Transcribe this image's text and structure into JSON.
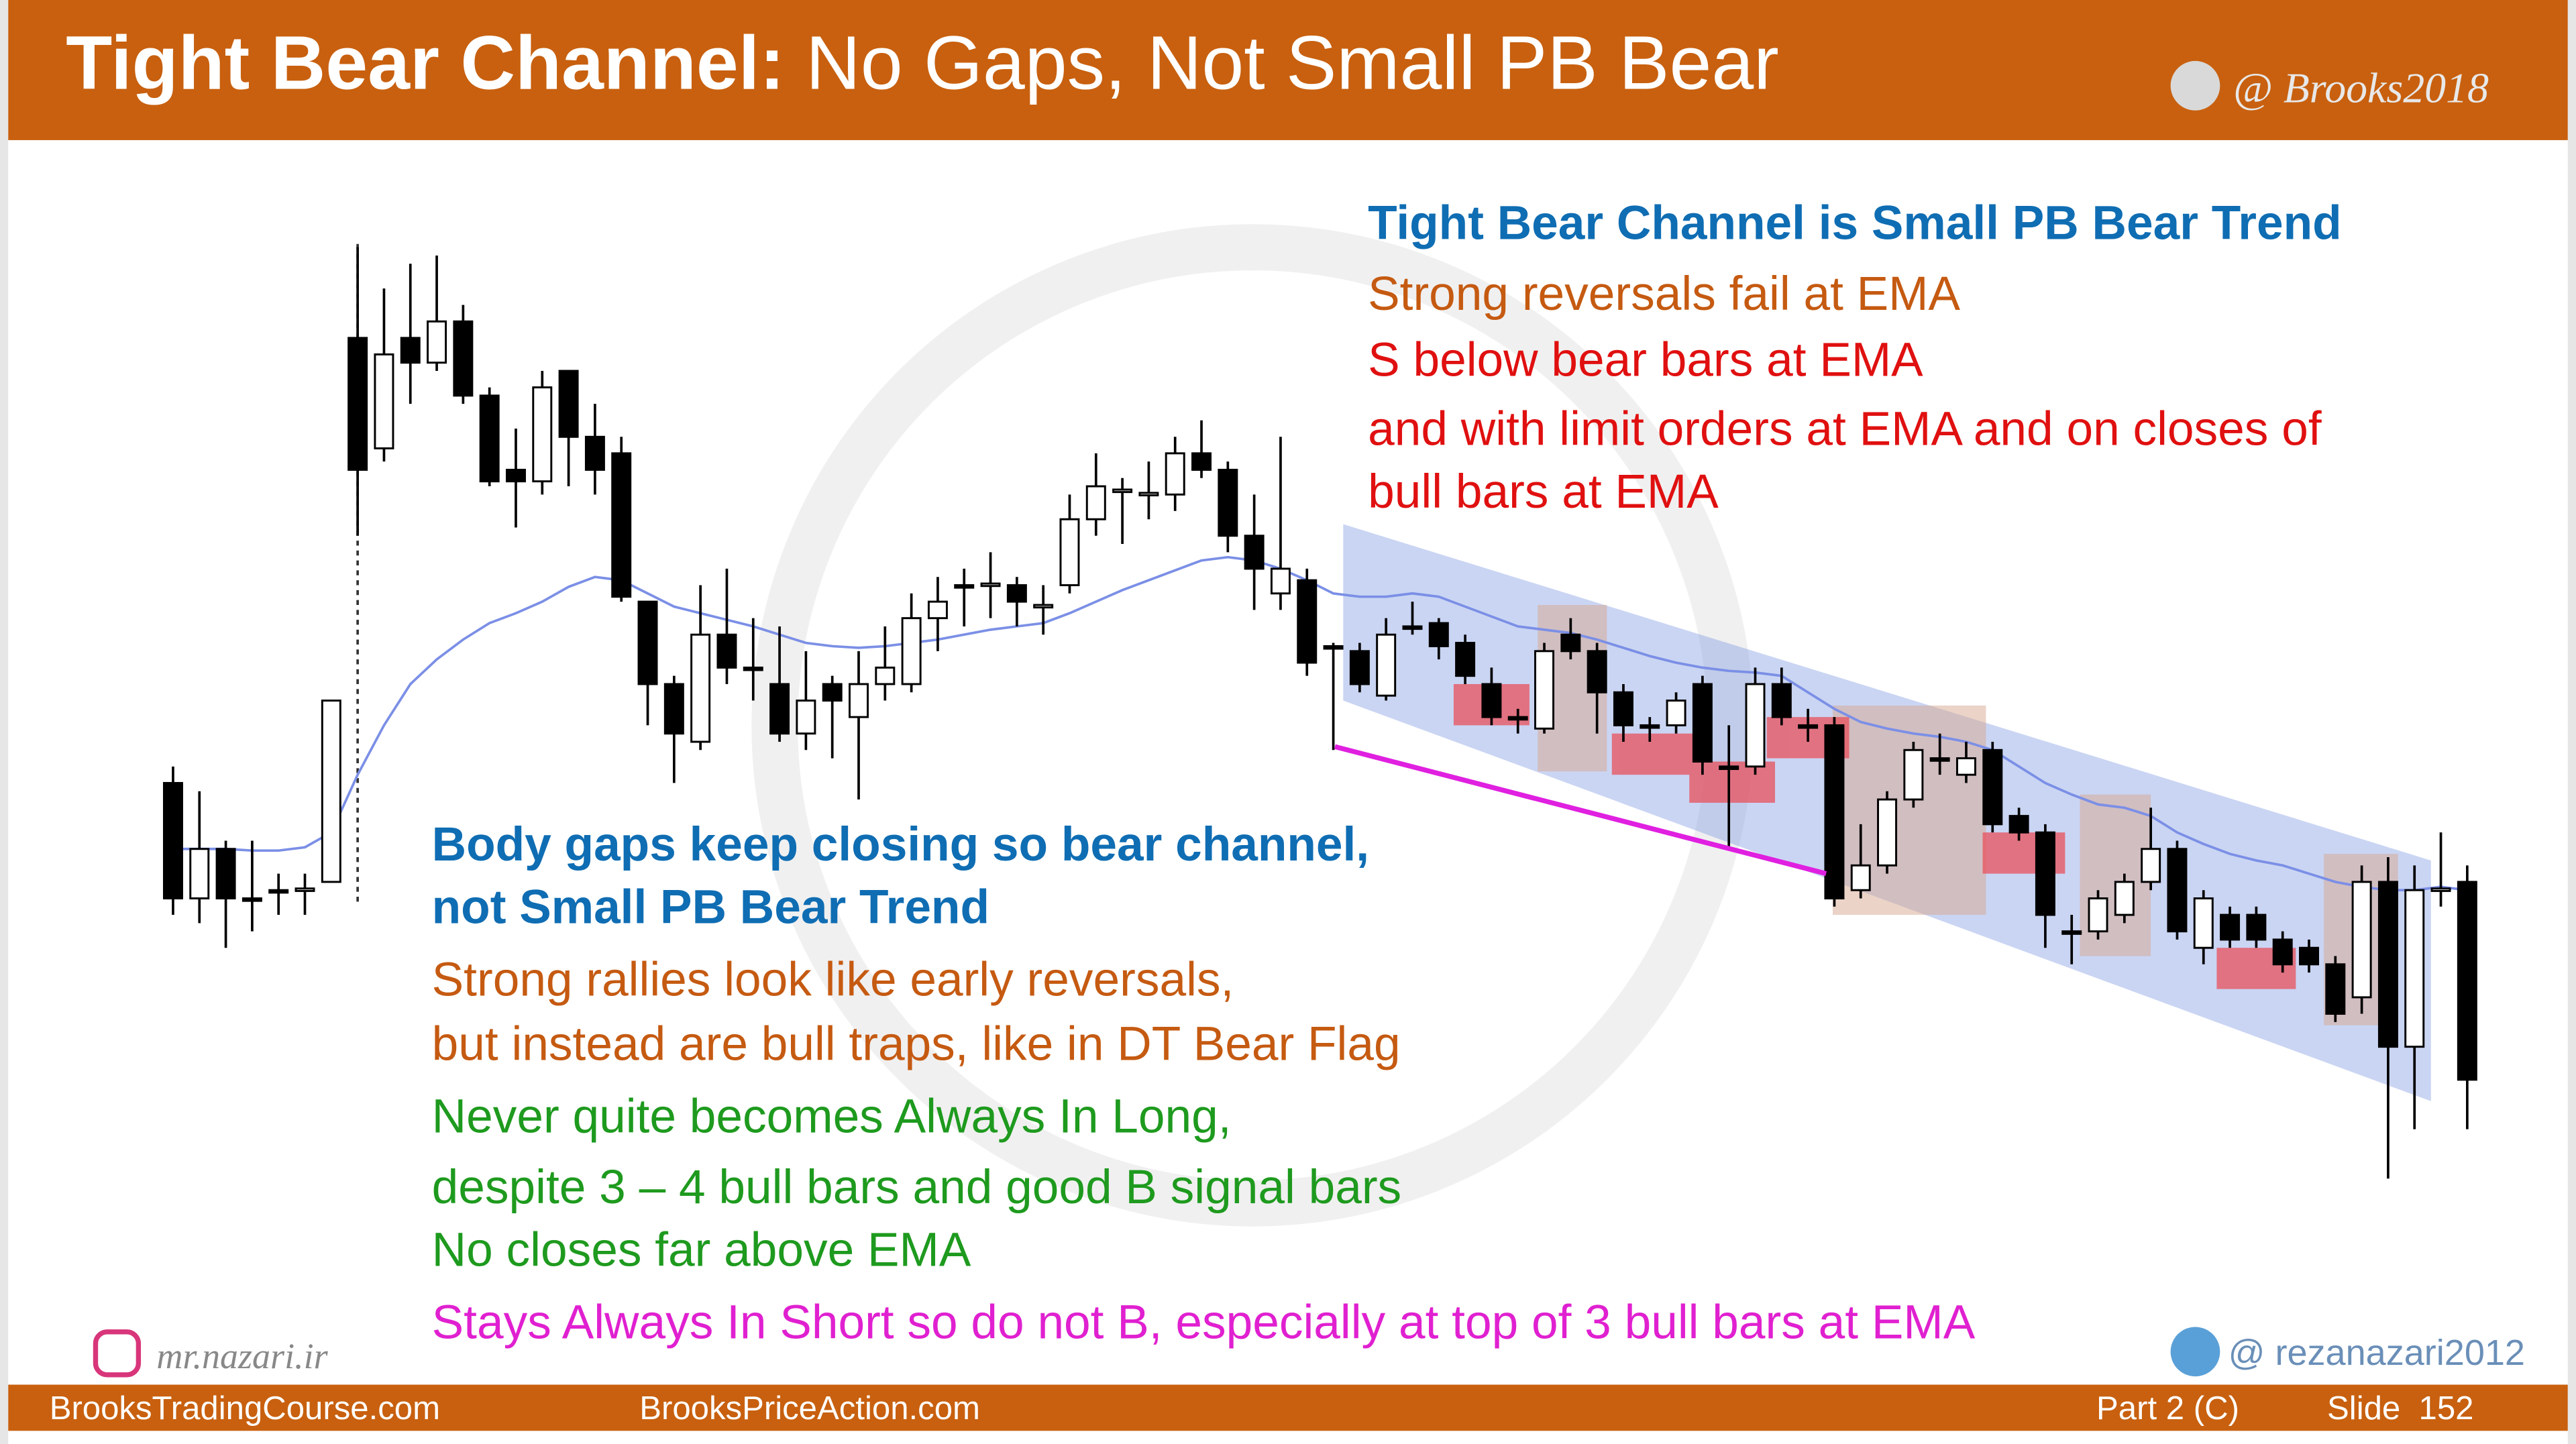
{
  "header": {
    "title_bold": "Tight Bear Channel:",
    "title_rest": "No Gaps, Not Small PB Bear",
    "handle": "@ Brooks2018"
  },
  "notes_right": [
    {
      "text": "Tight Bear Channel is Small PB Bear Trend",
      "color": "#0f6db3",
      "bold": true
    },
    {
      "text": "Strong reversals fail at EMA",
      "color": "#c55a11",
      "bold": false
    },
    {
      "text": "S below bear bars at EMA",
      "color": "#e01010",
      "bold": false
    },
    {
      "text": "and with limit orders at EMA and on closes of",
      "color": "#e01010",
      "bold": false
    },
    {
      "text": "bull bars at EMA",
      "color": "#e01010",
      "bold": false
    }
  ],
  "notes_left": [
    {
      "text": "Body gaps keep closing so bear channel,",
      "color": "#0f6db3",
      "bold": true
    },
    {
      "text": "not Small PB Bear Trend",
      "color": "#0f6db3",
      "bold": true
    },
    {
      "text": "Strong rallies look like early reversals,",
      "color": "#c55a11",
      "bold": false
    },
    {
      "text": "but instead are bull traps, like in DT Bear Flag",
      "color": "#c55a11",
      "bold": false
    },
    {
      "text": "Never quite becomes Always In Long,",
      "color": "#1e9a1e",
      "bold": false
    },
    {
      "text": "despite 3 – 4 bull bars and good B signal bars",
      "color": "#1e9a1e",
      "bold": false
    },
    {
      "text": "No closes far above EMA",
      "color": "#1e9a1e",
      "bold": false
    },
    {
      "text": "Stays Always In Short so do not B, especially at top of 3 bull bars at EMA",
      "color": "#e020d0",
      "bold": false
    }
  ],
  "instagram": "mr.nazari.ir",
  "telegram": "@ rezanazari2012",
  "footer": {
    "site1": "BrooksTradingCourse.com",
    "site2": "BrooksPriceAction.com",
    "part": "Part 2 (C)",
    "slide": "Slide  152"
  },
  "chart_data": {
    "type": "candlestick",
    "ylim": [
      0,
      720
    ],
    "ema_color": "#7b8fe6",
    "ohlc": [
      [
        245,
        255,
        165,
        175
      ],
      [
        175,
        240,
        160,
        205
      ],
      [
        205,
        210,
        145,
        175
      ],
      [
        175,
        210,
        155,
        174
      ],
      [
        180,
        190,
        165,
        179
      ],
      [
        180,
        190,
        165,
        181
      ],
      [
        185,
        295,
        185,
        295
      ],
      [
        515,
        570,
        395,
        435
      ],
      [
        448,
        545,
        440,
        505
      ],
      [
        515,
        560,
        475,
        500
      ],
      [
        500,
        565,
        495,
        525
      ],
      [
        525,
        535,
        475,
        480
      ],
      [
        480,
        485,
        425,
        428
      ],
      [
        435,
        460,
        400,
        428
      ],
      [
        428,
        495,
        420,
        485
      ],
      [
        495,
        495,
        425,
        455
      ],
      [
        455,
        475,
        420,
        435
      ],
      [
        445,
        455,
        355,
        358
      ],
      [
        355,
        355,
        280,
        305
      ],
      [
        305,
        310,
        245,
        275
      ],
      [
        270,
        365,
        265,
        335
      ],
      [
        335,
        375,
        305,
        315
      ],
      [
        315,
        345,
        295,
        314
      ],
      [
        305,
        340,
        270,
        275
      ],
      [
        275,
        325,
        265,
        295
      ],
      [
        305,
        310,
        260,
        295
      ],
      [
        285,
        325,
        235,
        305
      ],
      [
        305,
        340,
        295,
        315
      ],
      [
        305,
        360,
        300,
        345
      ],
      [
        345,
        370,
        325,
        355
      ],
      [
        365,
        375,
        340,
        364
      ],
      [
        365,
        385,
        345,
        366
      ],
      [
        365,
        370,
        340,
        355
      ],
      [
        352,
        365,
        335,
        353
      ],
      [
        365,
        420,
        360,
        405
      ],
      [
        405,
        445,
        395,
        425
      ],
      [
        422,
        430,
        390,
        423
      ],
      [
        420,
        440,
        405,
        421
      ],
      [
        420,
        455,
        410,
        445
      ],
      [
        445,
        465,
        430,
        435
      ],
      [
        435,
        440,
        385,
        395
      ],
      [
        395,
        420,
        350,
        375
      ],
      [
        360,
        455,
        350,
        375
      ],
      [
        368,
        375,
        310,
        318
      ],
      [
        328,
        330,
        265,
        327
      ],
      [
        325,
        330,
        300,
        305
      ],
      [
        298,
        345,
        295,
        335
      ],
      [
        340,
        355,
        335,
        339
      ],
      [
        342,
        345,
        320,
        328
      ],
      [
        330,
        335,
        305,
        310
      ],
      [
        305,
        315,
        280,
        285
      ],
      [
        285,
        290,
        275,
        284
      ],
      [
        278,
        330,
        275,
        325
      ],
      [
        335,
        345,
        320,
        325
      ],
      [
        325,
        330,
        275,
        300
      ],
      [
        300,
        305,
        270,
        280
      ],
      [
        280,
        285,
        270,
        279
      ],
      [
        280,
        300,
        275,
        295
      ],
      [
        305,
        310,
        250,
        258
      ],
      [
        255,
        280,
        205,
        254
      ],
      [
        255,
        315,
        250,
        305
      ],
      [
        305,
        315,
        280,
        285
      ],
      [
        280,
        290,
        270,
        279
      ],
      [
        280,
        285,
        170,
        175
      ],
      [
        180,
        220,
        175,
        195
      ],
      [
        195,
        240,
        190,
        235
      ],
      [
        235,
        270,
        230,
        265
      ],
      [
        260,
        275,
        250,
        259
      ],
      [
        250,
        270,
        245,
        260
      ],
      [
        265,
        270,
        215,
        220
      ],
      [
        225,
        230,
        210,
        215
      ],
      [
        215,
        220,
        145,
        165
      ],
      [
        155,
        165,
        135,
        154
      ],
      [
        155,
        180,
        150,
        175
      ],
      [
        165,
        190,
        160,
        185
      ],
      [
        185,
        230,
        180,
        205
      ],
      [
        205,
        210,
        150,
        155
      ],
      [
        145,
        180,
        135,
        175
      ],
      [
        165,
        170,
        145,
        150
      ],
      [
        165,
        170,
        145,
        150
      ],
      [
        150,
        155,
        130,
        135
      ],
      [
        145,
        150,
        130,
        135
      ],
      [
        135,
        140,
        100,
        105
      ],
      [
        115,
        195,
        105,
        185
      ],
      [
        185,
        200,
        5,
        85
      ],
      [
        85,
        195,
        35,
        180
      ],
      [
        180,
        215,
        170,
        181
      ],
      [
        185,
        195,
        35,
        65
      ]
    ],
    "ema": [
      205,
      205,
      205,
      204,
      204,
      206,
      215,
      250,
      280,
      305,
      320,
      332,
      342,
      348,
      355,
      364,
      370,
      368,
      360,
      352,
      348,
      344,
      340,
      335,
      330,
      328,
      327,
      328,
      330,
      332,
      335,
      338,
      340,
      342,
      348,
      355,
      362,
      368,
      374,
      380,
      382,
      380,
      375,
      368,
      360,
      358,
      358,
      360,
      358,
      352,
      346,
      340,
      338,
      336,
      332,
      327,
      322,
      318,
      315,
      313,
      312,
      310,
      300,
      290,
      282,
      278,
      275,
      273,
      270,
      265,
      255,
      245,
      238,
      232,
      230,
      225,
      215,
      208,
      202,
      198,
      195,
      190,
      185,
      182,
      180,
      180,
      182,
      180
    ]
  }
}
